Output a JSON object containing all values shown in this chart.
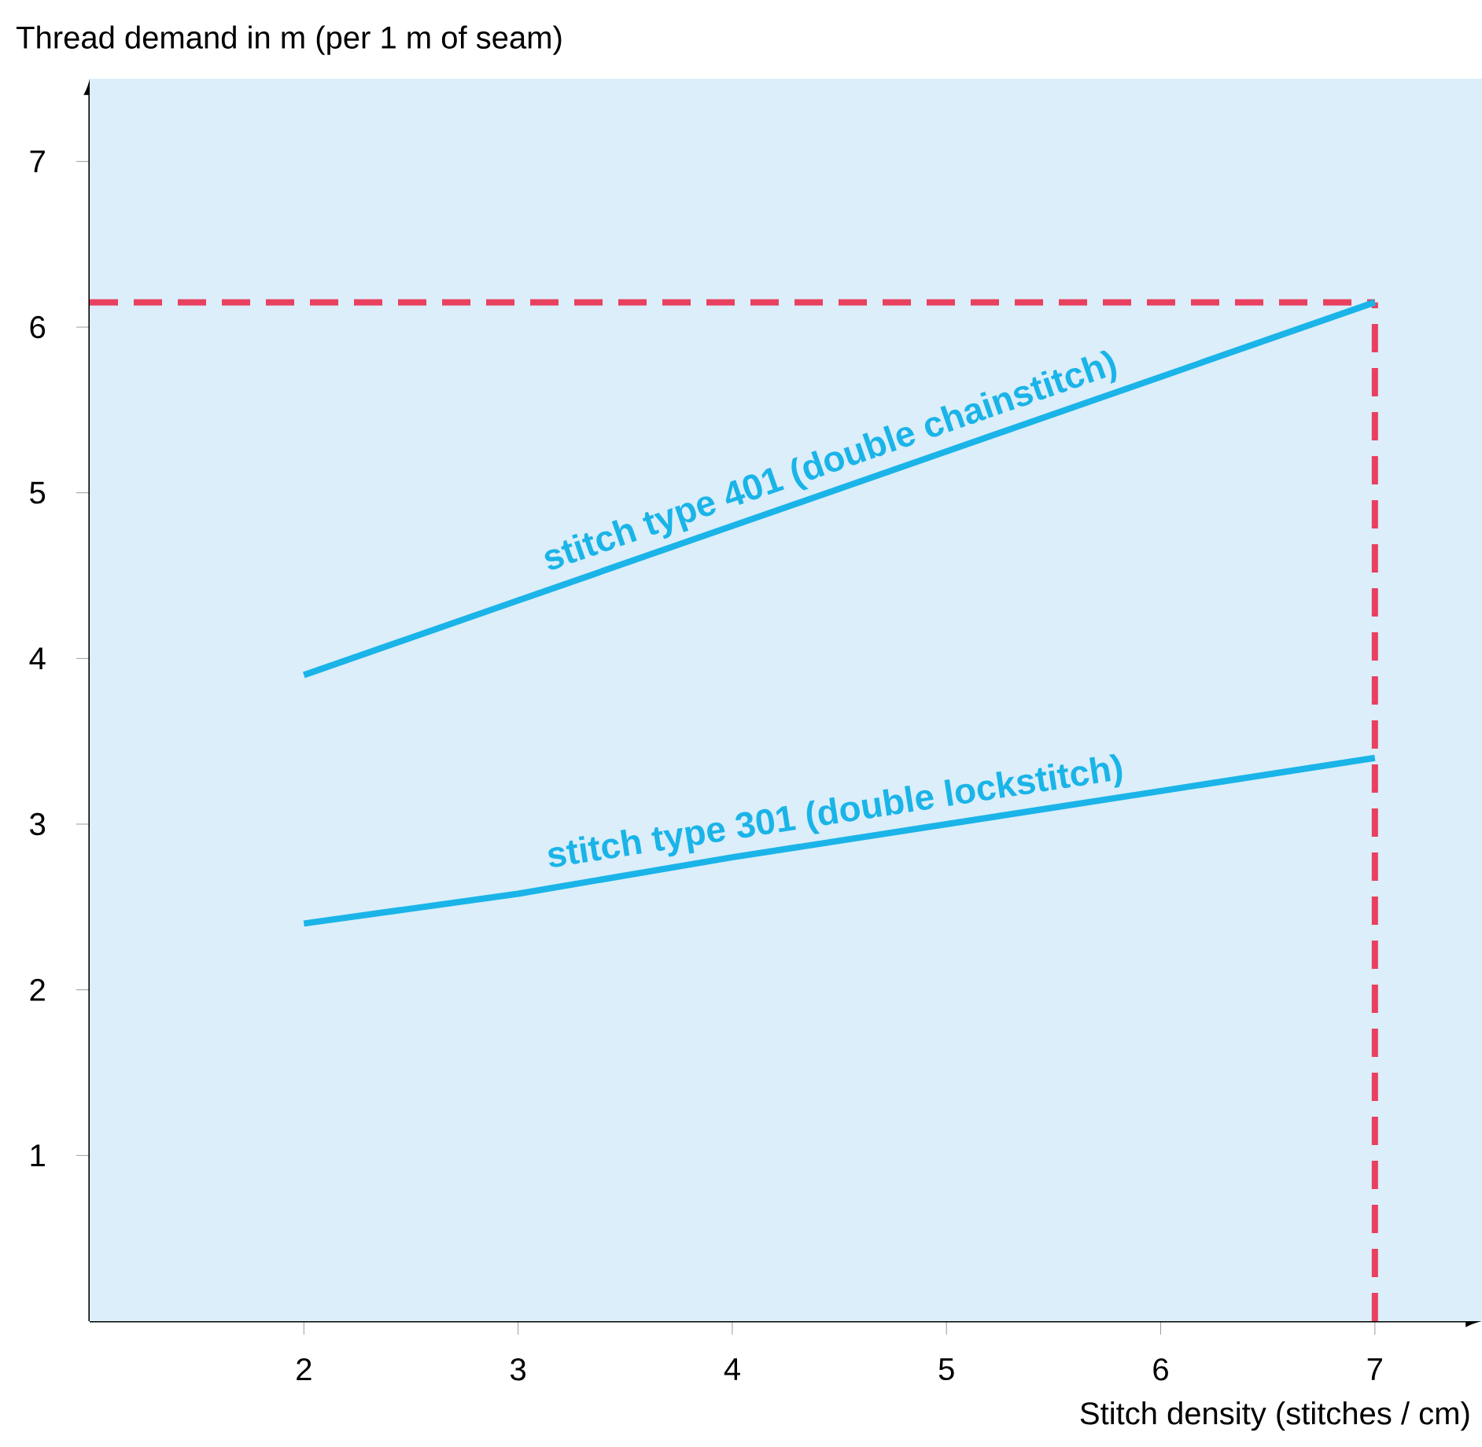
{
  "chart_data": {
    "type": "line",
    "xlabel": "Stitch density (stitches / cm)",
    "ylabel": "Thread demand in m (per 1 m of seam)",
    "x": [
      2,
      3,
      4,
      5,
      6,
      7
    ],
    "series": [
      {
        "name": "stitch type 401 (double chainstitch)",
        "color": "#1ab4e8",
        "values": [
          3.9,
          4.35,
          4.8,
          5.25,
          5.7,
          6.15
        ]
      },
      {
        "name": "stitch type 301 (double lockstitch)",
        "color": "#1ab4e8",
        "values": [
          2.4,
          2.58,
          2.8,
          3.0,
          3.2,
          3.4
        ]
      }
    ],
    "xlim": [
      1,
      7.5
    ],
    "ylim": [
      0,
      7.5
    ],
    "xticks": [
      2,
      3,
      4,
      5,
      6,
      7
    ],
    "yticks": [
      1,
      2,
      3,
      4,
      5,
      6,
      7
    ],
    "ref_lines": [
      {
        "axis": "x",
        "value": 7,
        "color": "#e8405e",
        "line_style": "dashed"
      },
      {
        "axis": "y",
        "value": 6.15,
        "color": "#e8405e",
        "line_style": "dashed"
      }
    ],
    "marker": "none",
    "line_style": "solid"
  }
}
